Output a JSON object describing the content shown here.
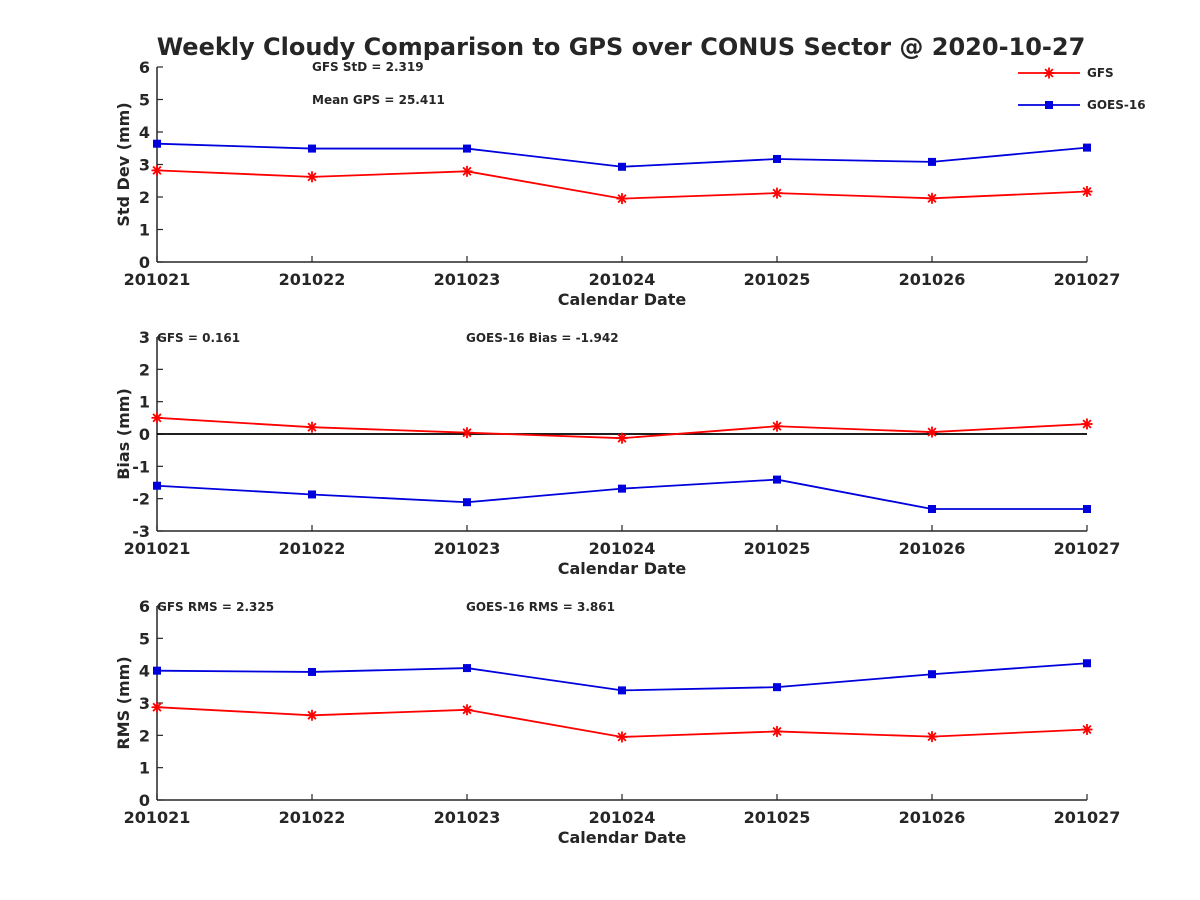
{
  "title": "Weekly Cloudy Comparison to GPS over CONUS Sector @ 2020-10-27",
  "colors": {
    "gfs": "#ff0000",
    "goes": "#0000dd",
    "zero_line": "#000000",
    "axis": "#262626"
  },
  "legend": [
    {
      "label": "GFS",
      "color": "#ff0000",
      "marker": "asterisk"
    },
    {
      "label": "GOES-16",
      "color": "#0000dd",
      "marker": "square"
    }
  ],
  "chart_data": [
    {
      "type": "line",
      "categories": [
        "201021",
        "201022",
        "201023",
        "201024",
        "201025",
        "201026",
        "201027"
      ],
      "xlabel": "Calendar Date",
      "ylabel": "Std Dev (mm)",
      "ylim": [
        0,
        6
      ],
      "yticks": [
        "0",
        "1",
        "2",
        "3",
        "4",
        "5",
        "6"
      ],
      "annotations": [
        "GFS StD = 2.319",
        "Mean GPS = 25.411"
      ],
      "series": [
        {
          "name": "GFS",
          "color": "#ff0000",
          "marker": "asterisk",
          "values": [
            2.82,
            2.62,
            2.79,
            1.95,
            2.12,
            1.96,
            2.17
          ]
        },
        {
          "name": "GOES-16",
          "color": "#0000dd",
          "marker": "square",
          "values": [
            3.64,
            3.49,
            3.49,
            2.93,
            3.17,
            3.08,
            3.52
          ]
        }
      ],
      "legend": "top-right"
    },
    {
      "type": "line",
      "categories": [
        "201021",
        "201022",
        "201023",
        "201024",
        "201025",
        "201026",
        "201027"
      ],
      "xlabel": "Calendar Date",
      "ylabel": "Bias (mm)",
      "ylim": [
        -3,
        3
      ],
      "yticks": [
        "-3",
        "-2",
        "-1",
        "0",
        "1",
        "2",
        "3"
      ],
      "zero_line": true,
      "annotations": [
        "GFS = 0.161",
        "GOES-16 Bias  = -1.942"
      ],
      "series": [
        {
          "name": "GFS",
          "color": "#ff0000",
          "marker": "asterisk",
          "values": [
            0.5,
            0.21,
            0.04,
            -0.13,
            0.24,
            0.06,
            0.31
          ]
        },
        {
          "name": "GOES-16",
          "color": "#0000dd",
          "marker": "square",
          "values": [
            -1.6,
            -1.87,
            -2.11,
            -1.69,
            -1.41,
            -2.32,
            -2.32
          ]
        }
      ]
    },
    {
      "type": "line",
      "categories": [
        "201021",
        "201022",
        "201023",
        "201024",
        "201025",
        "201026",
        "201027"
      ],
      "xlabel": "Calendar Date",
      "ylabel": "RMS (mm)",
      "ylim": [
        0,
        6
      ],
      "yticks": [
        "0",
        "1",
        "2",
        "3",
        "4",
        "5",
        "6"
      ],
      "annotations": [
        "GFS RMS = 2.325",
        "GOES-16 RMS = 3.861"
      ],
      "series": [
        {
          "name": "GFS",
          "color": "#ff0000",
          "marker": "asterisk",
          "values": [
            2.87,
            2.62,
            2.79,
            1.95,
            2.12,
            1.96,
            2.18
          ]
        },
        {
          "name": "GOES-16",
          "color": "#0000dd",
          "marker": "square",
          "values": [
            4.0,
            3.96,
            4.08,
            3.39,
            3.49,
            3.89,
            4.23
          ]
        }
      ]
    }
  ]
}
